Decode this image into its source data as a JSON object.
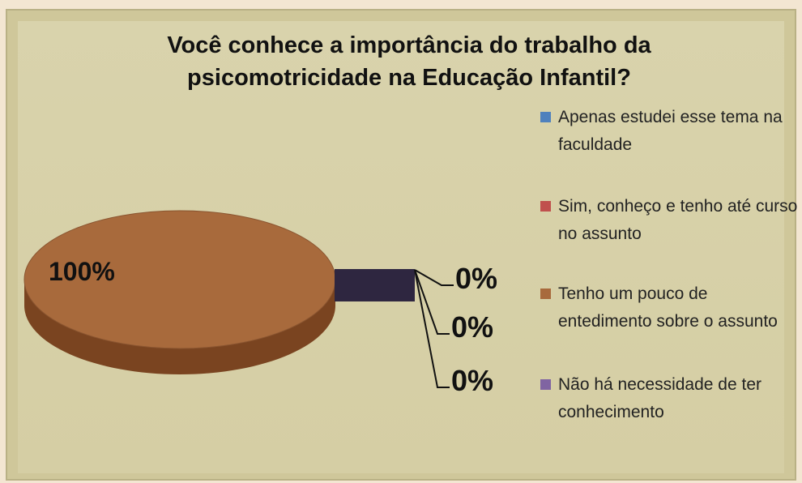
{
  "chart_data": {
    "type": "pie",
    "title": "Você conhece a importância do trabalho da psicomotricidade na Educação Infantil?",
    "categories": [
      "Apenas estudei esse tema na faculdade",
      "Sim, conheço e tenho até curso no assunto",
      "Tenho um pouco de entedimento sobre o assunto",
      "Não há necessidade de ter conhecimento"
    ],
    "values": [
      0,
      0,
      100,
      0
    ],
    "value_labels": [
      "0%",
      "0%",
      "100%",
      "0%"
    ],
    "colors": [
      "#4f81bd",
      "#c0504d",
      "#a86a3c",
      "#8064a2"
    ],
    "legend": "right"
  }
}
